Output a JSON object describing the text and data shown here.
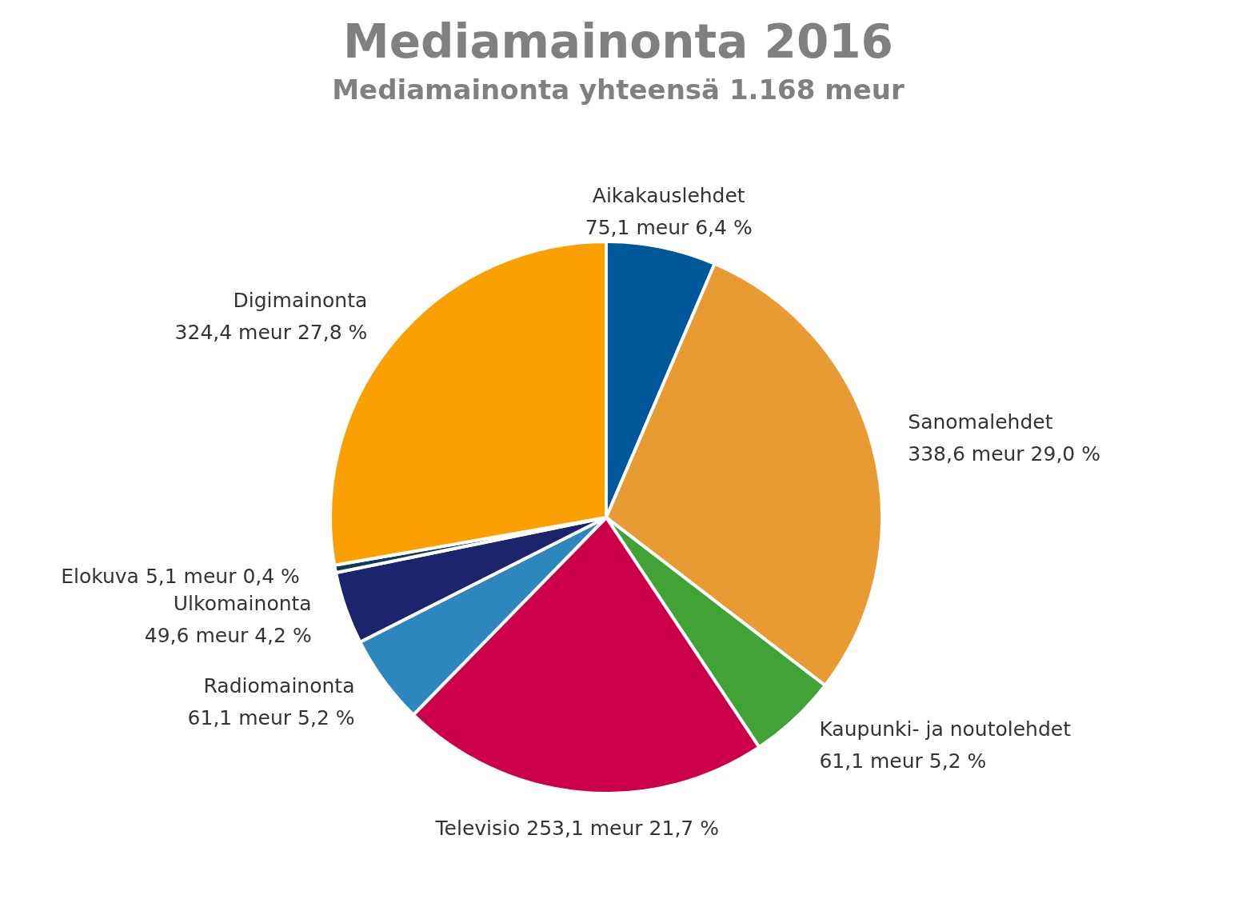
{
  "chart_data": {
    "type": "pie",
    "title": "Mediamainonta 2016",
    "subtitle": "Mediamainonta yhteensä 1.168 meur",
    "categories": [
      "Aikakauslehdet",
      "Sanomalehdet",
      "Kaupunki- ja noutolehdet",
      "Televisio",
      "Radiomainonta",
      "Ulkomainonta",
      "Elokuva",
      "Digimainonta"
    ],
    "values": [
      75.1,
      338.6,
      61.1,
      253.1,
      61.1,
      49.6,
      5.1,
      324.4
    ],
    "value_labels": [
      "75,1 meur 6,4 %",
      "338,6 meur 29,0 %",
      "61,1 meur 5,2 %",
      "253,1 meur 21,7 %",
      "61,1 meur 5,2 %",
      "49,6 meur 4,2 %",
      "5,1 meur 0,4 %",
      "324,4 meur 27,8 %"
    ],
    "colors": [
      "#00579a",
      "#e89a33",
      "#41a238",
      "#cc0048",
      "#2e86bf",
      "#1a256b",
      "#0b3a5a",
      "#fba001"
    ]
  }
}
